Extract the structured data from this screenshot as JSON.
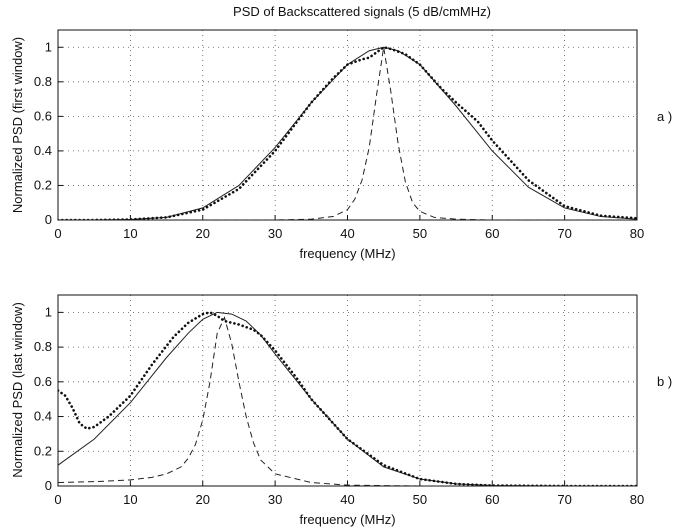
{
  "figure": {
    "title": "PSD of Backscattered signals (5 dB/cmMHz)"
  },
  "chart_data": [
    {
      "type": "line",
      "panel_tag": "a )",
      "xlabel": "frequency (MHz)",
      "ylabel": "Normalized PSD (first window)",
      "xlim": [
        0,
        80
      ],
      "ylim": [
        0,
        1.1
      ],
      "xticks": [
        0,
        10,
        20,
        30,
        40,
        50,
        60,
        70,
        80
      ],
      "yticks": [
        0,
        0.2,
        0.4,
        0.6,
        0.8,
        1
      ],
      "xtick_labels": [
        "0",
        "10",
        "20",
        "30",
        "40",
        "50",
        "60",
        "70",
        "80"
      ],
      "ytick_labels": [
        "0",
        "0.2",
        "0.4",
        "0.6",
        "0.8",
        "1"
      ],
      "grid": true,
      "series": [
        {
          "style": "solid",
          "x": [
            0,
            5,
            10,
            15,
            20,
            25,
            30,
            35,
            40,
            43,
            45,
            47,
            50,
            55,
            60,
            65,
            70,
            75,
            80
          ],
          "y": [
            0.0,
            0.0,
            0.003,
            0.015,
            0.07,
            0.2,
            0.42,
            0.68,
            0.9,
            0.98,
            1.0,
            0.98,
            0.9,
            0.66,
            0.4,
            0.19,
            0.07,
            0.02,
            0.005
          ]
        },
        {
          "style": "dotted",
          "x": [
            0,
            5,
            10,
            15,
            20,
            25,
            30,
            35,
            38,
            40,
            42,
            43,
            44,
            45,
            46,
            48,
            50,
            53,
            55,
            58,
            60,
            65,
            70,
            75,
            80
          ],
          "y": [
            0.0,
            0.0,
            0.003,
            0.015,
            0.06,
            0.18,
            0.4,
            0.68,
            0.82,
            0.9,
            0.93,
            0.94,
            0.97,
            1.0,
            0.99,
            0.96,
            0.9,
            0.76,
            0.68,
            0.57,
            0.46,
            0.23,
            0.08,
            0.025,
            0.01
          ]
        },
        {
          "style": "dashed",
          "x": [
            0,
            10,
            20,
            30,
            35,
            38,
            40,
            41,
            42,
            43,
            44,
            45,
            46,
            47,
            48,
            49,
            50,
            52,
            55,
            60,
            70,
            80
          ],
          "y": [
            0,
            0,
            0,
            0,
            0.005,
            0.02,
            0.06,
            0.12,
            0.23,
            0.42,
            0.72,
            1.0,
            0.74,
            0.44,
            0.22,
            0.1,
            0.05,
            0.015,
            0.005,
            0,
            0,
            0
          ]
        }
      ]
    },
    {
      "type": "line",
      "panel_tag": "b )",
      "xlabel": "frequency (MHz)",
      "ylabel": "Normalized PSD (last window)",
      "xlim": [
        0,
        80
      ],
      "ylim": [
        0,
        1.1
      ],
      "xticks": [
        0,
        10,
        20,
        30,
        40,
        50,
        60,
        70,
        80
      ],
      "yticks": [
        0,
        0.2,
        0.4,
        0.6,
        0.8,
        1
      ],
      "xtick_labels": [
        "0",
        "10",
        "20",
        "30",
        "40",
        "50",
        "60",
        "70",
        "80"
      ],
      "ytick_labels": [
        "0",
        "0.2",
        "0.4",
        "0.6",
        "0.8",
        "1"
      ],
      "grid": true,
      "series": [
        {
          "style": "solid",
          "x": [
            0,
            5,
            10,
            15,
            18,
            20,
            22,
            24,
            26,
            28,
            30,
            35,
            40,
            45,
            50,
            55,
            60,
            70,
            80
          ],
          "y": [
            0.12,
            0.27,
            0.48,
            0.74,
            0.88,
            0.96,
            1.0,
            0.99,
            0.95,
            0.87,
            0.76,
            0.5,
            0.27,
            0.11,
            0.04,
            0.012,
            0.003,
            0.0,
            0.0
          ]
        },
        {
          "style": "dotted",
          "x": [
            0,
            1,
            2,
            3,
            4,
            5,
            7,
            10,
            13,
            16,
            18,
            20,
            21,
            22,
            23,
            25,
            27,
            28,
            30,
            33,
            35,
            40,
            45,
            50,
            55,
            60,
            70,
            80
          ],
          "y": [
            0.55,
            0.52,
            0.45,
            0.36,
            0.33,
            0.34,
            0.4,
            0.52,
            0.7,
            0.86,
            0.94,
            0.99,
            1.0,
            0.98,
            0.95,
            0.93,
            0.9,
            0.87,
            0.78,
            0.62,
            0.5,
            0.27,
            0.12,
            0.04,
            0.012,
            0.003,
            0.0,
            0.0
          ]
        },
        {
          "style": "dashed",
          "x": [
            0,
            5,
            10,
            13,
            15,
            17,
            18,
            19,
            20,
            21,
            22,
            23,
            24,
            25,
            26,
            27,
            28,
            30,
            35,
            40,
            50,
            60,
            70,
            80
          ],
          "y": [
            0.02,
            0.025,
            0.035,
            0.05,
            0.07,
            0.11,
            0.16,
            0.24,
            0.38,
            0.6,
            0.88,
            0.97,
            0.82,
            0.6,
            0.4,
            0.25,
            0.15,
            0.07,
            0.02,
            0.005,
            0.0,
            0.0,
            0.0,
            0.0
          ]
        }
      ]
    }
  ]
}
